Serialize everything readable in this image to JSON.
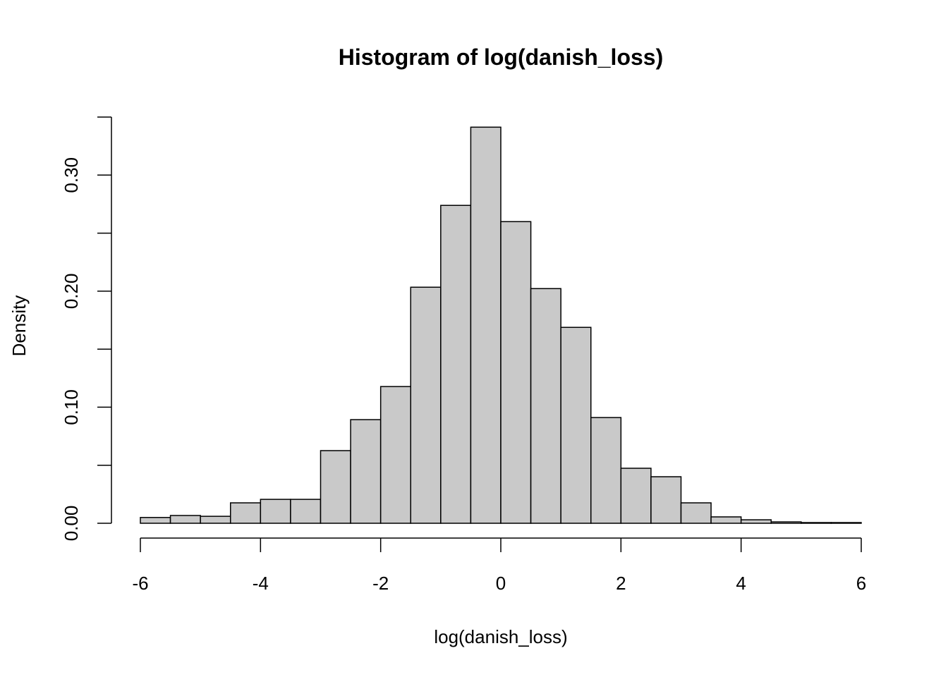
{
  "chart_data": {
    "type": "bar",
    "title": "Histogram of log(danish_loss)",
    "xlabel": "log(danish_loss)",
    "ylabel": "Density",
    "xlim": [
      -6,
      6
    ],
    "ylim": [
      0,
      0.35
    ],
    "bin_width": 0.5,
    "bin_starts": [
      -6,
      -5.5,
      -5,
      -4.5,
      -4,
      -3.5,
      -3,
      -2.5,
      -2,
      -1.5,
      -1,
      -0.5,
      0,
      0.5,
      1,
      1.5,
      2,
      2.5,
      3,
      3.5,
      4,
      4.5,
      5,
      5.5
    ],
    "values": [
      0.005,
      0.0067,
      0.006,
      0.0176,
      0.0206,
      0.0206,
      0.0626,
      0.0893,
      0.1178,
      0.2034,
      0.2739,
      0.3413,
      0.2599,
      0.2022,
      0.1688,
      0.0911,
      0.0474,
      0.0401,
      0.0176,
      0.0055,
      0.003,
      0.0012,
      0.0006,
      0.0006
    ],
    "x_ticks": [
      -6,
      -4,
      -2,
      0,
      2,
      4,
      6
    ],
    "x_tick_labels": [
      "-6",
      "-4",
      "-2",
      "0",
      "2",
      "4",
      "6"
    ],
    "y_ticks": [
      0,
      0.05,
      0.1,
      0.15,
      0.2,
      0.25,
      0.3,
      0.35
    ],
    "y_tick_labels": [
      "0.00",
      "0.10",
      "0.20",
      "0.30"
    ],
    "y_labeled_ticks": [
      0,
      0.1,
      0.2,
      0.3
    ],
    "grid": false,
    "bar_fill": "#c9c9c9",
    "bar_stroke": "#000000"
  }
}
